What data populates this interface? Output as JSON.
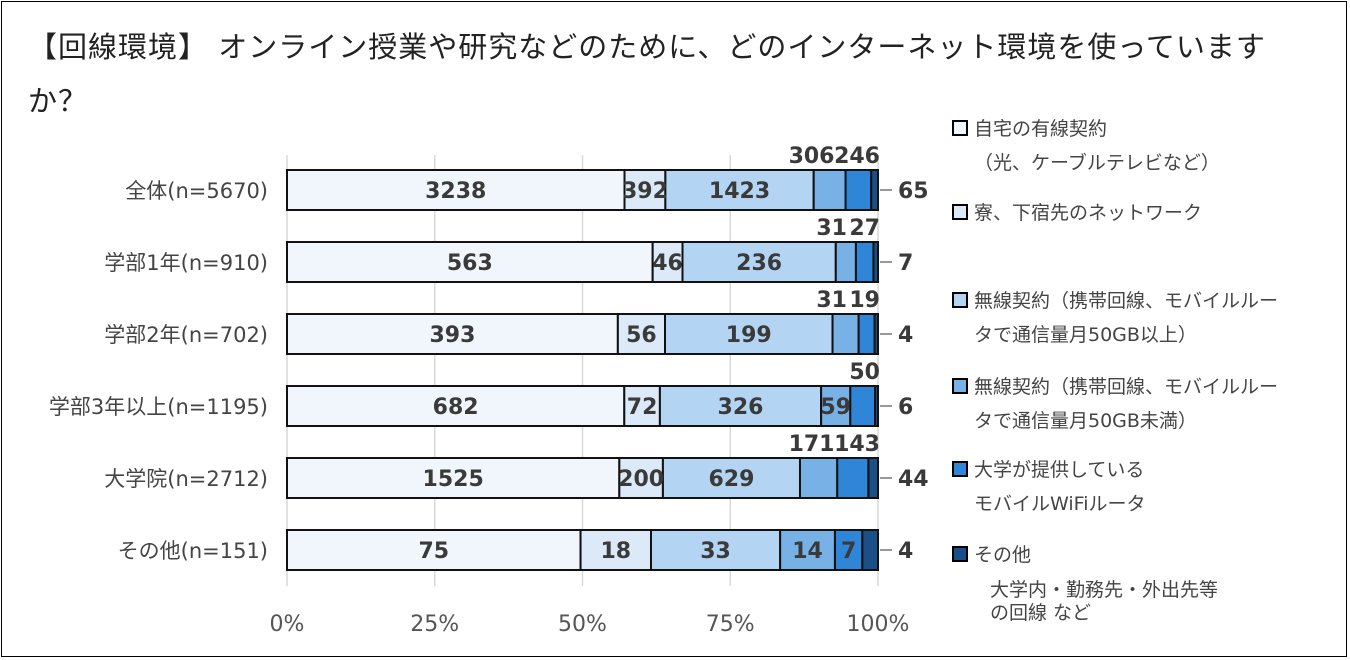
{
  "title": "【回線環境】 オンライン授業や研究などのために、どのインターネット環境を使っていますか？",
  "chart_data": {
    "type": "bar",
    "orientation": "horizontal",
    "stacked": "percent",
    "categories": [
      "全体(n=5670)",
      "学部1年(n=910)",
      "学部2年(n=702)",
      "学部3年以上(n=1195)",
      "大学院(n=2712)",
      "その他(n=151)"
    ],
    "series": [
      {
        "name": "自宅の有線契約（光、ケーブルテレビなど）",
        "color": "#f0f6fc",
        "values": [
          3238,
          563,
          393,
          682,
          1525,
          75
        ]
      },
      {
        "name": "寮、下宿先のネットワーク",
        "color": "#dbe9f8",
        "values": [
          392,
          46,
          56,
          72,
          200,
          18
        ]
      },
      {
        "name": "無線契約（携帯回線、モバイルルータで通信量月50GB以上）",
        "color": "#b3d4f2",
        "values": [
          1423,
          236,
          199,
          326,
          629,
          33
        ]
      },
      {
        "name": "無線契約（携帯回線、モバイルルータで通信量月50GB未満）",
        "color": "#78b1e6",
        "values": [
          306,
          31,
          31,
          59,
          171,
          14
        ]
      },
      {
        "name": "大学が提供しているモバイルWiFiルータ",
        "color": "#2f86d8",
        "values": [
          246,
          27,
          19,
          50,
          143,
          7
        ]
      },
      {
        "name": "その他 大学内・勤務先・外出先等の回線 など",
        "color": "#1b4f88",
        "values": [
          65,
          7,
          4,
          6,
          44,
          4
        ]
      }
    ],
    "xticks": [
      "0%",
      "25%",
      "50%",
      "75%",
      "100%"
    ],
    "xlim": [
      0,
      100
    ],
    "grid": "vertical",
    "legend_position": "right"
  },
  "legend": [
    {
      "line1": "自宅の有線契約",
      "line2": "（光、ケーブルテレビなど）"
    },
    {
      "line1": "寮、下宿先のネットワーク",
      "line2": ""
    },
    {
      "line1": "無線契約（携帯回線、モバイルルー",
      "line2": "タで通信量月50GB以上）"
    },
    {
      "line1": "無線契約（携帯回線、モバイルルー",
      "line2": "タで通信量月50GB未満）"
    },
    {
      "line1": "大学が提供している",
      "line2": "モバイルWiFiルータ"
    },
    {
      "line1": "その他",
      "line2": "大学内・勤務先・外出先等",
      "line3": "の回線 など"
    }
  ]
}
